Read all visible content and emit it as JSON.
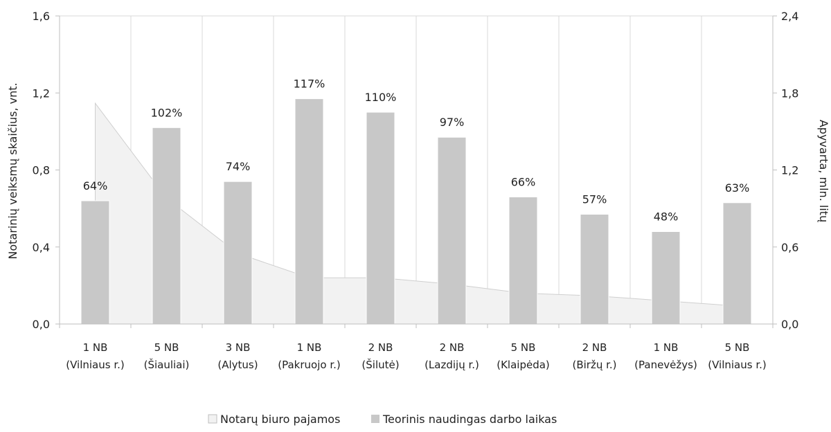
{
  "chart_data": {
    "type": "bar",
    "categories": [
      [
        "1 NB",
        "(Vilniaus r.)"
      ],
      [
        "5 NB",
        "(Šiauliai)"
      ],
      [
        "3 NB",
        "(Alytus)"
      ],
      [
        "1 NB",
        "(Pakruojo r.)"
      ],
      [
        "2 NB",
        "(Šilutė)"
      ],
      [
        "2 NB",
        "(Lazdijų r.)"
      ],
      [
        "5 NB",
        "(Klaipėda)"
      ],
      [
        "2 NB",
        "(Biržų r.)"
      ],
      [
        "1 NB",
        "(Panevėžys)"
      ],
      [
        "5 NB",
        "(Vilniaus r.)"
      ]
    ],
    "y_left": {
      "label": "Notarinių veiksmų skaičius, vnt.",
      "range": [
        0,
        1.6
      ],
      "ticks": [
        "0,0",
        "0,4",
        "0,8",
        "1,2",
        "1,6"
      ]
    },
    "y_right": {
      "label": "Apyvarta, mln. litų",
      "range": [
        0,
        2.4
      ],
      "ticks": [
        "0,0",
        "0,6",
        "1,2",
        "1,8",
        "2,4"
      ]
    },
    "grid": "vertical",
    "legend_position": "bottom-center",
    "series": [
      {
        "name": "Notarų biuro pajamos",
        "type": "area",
        "axis": "right",
        "color": "#f2f2f2",
        "stroke": "#cfcfcf",
        "values": [
          1.72,
          0.98,
          0.55,
          0.36,
          0.36,
          0.31,
          0.24,
          0.22,
          0.18,
          0.14
        ]
      },
      {
        "name": "Teorinis naudingas darbo laikas",
        "type": "bar",
        "axis": "left",
        "color": "#c8c8c8",
        "values": [
          0.64,
          1.02,
          0.74,
          1.17,
          1.1,
          0.97,
          0.66,
          0.57,
          0.48,
          0.63
        ],
        "labels": [
          "64%",
          "102%",
          "74%",
          "117%",
          "110%",
          "97%",
          "66%",
          "57%",
          "48%",
          "63%"
        ]
      }
    ]
  }
}
